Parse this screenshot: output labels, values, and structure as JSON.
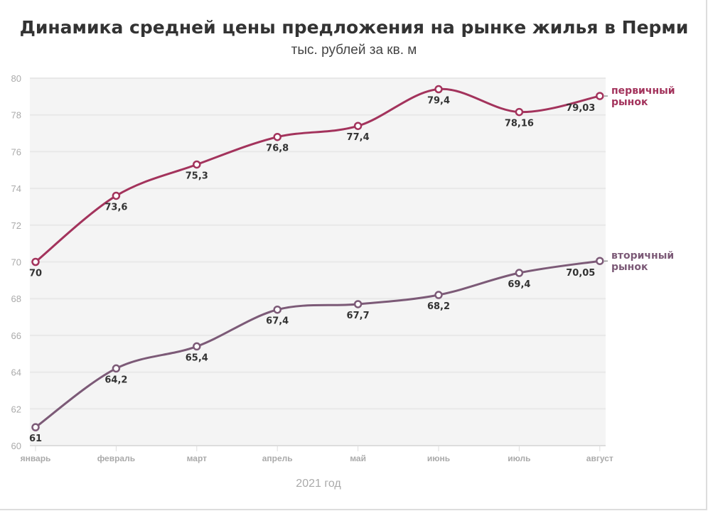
{
  "chart_data": {
    "type": "line",
    "title": "Динамика средней цены предложения на рынке жилья в Перми",
    "subtitle": "тыс. рублей за кв. м",
    "xlabel": "2021 год",
    "ylabel": "",
    "categories": [
      "январь",
      "февраль",
      "март",
      "апрель",
      "май",
      "июнь",
      "июль",
      "август"
    ],
    "ylim": [
      60,
      80
    ],
    "yticks": [
      60,
      62,
      64,
      66,
      68,
      70,
      72,
      74,
      76,
      78,
      80
    ],
    "grid": true,
    "legend": "direct labels at line ends (right)",
    "series": [
      {
        "name": "первичный рынок",
        "name_lines": [
          "первичный",
          "рынок"
        ],
        "color": "#a3335c",
        "values": [
          70,
          73.6,
          75.3,
          76.8,
          77.4,
          79.4,
          78.16,
          79.03
        ],
        "labels": [
          "70",
          "73,6",
          "75,3",
          "76,8",
          "77,4",
          "79,4",
          "78,16",
          "79,03"
        ]
      },
      {
        "name": "вторичный рынок",
        "name_lines": [
          "вторичный",
          "рынок"
        ],
        "color": "#7c5a77",
        "values": [
          61,
          64.2,
          65.4,
          67.4,
          67.7,
          68.2,
          69.4,
          70.05
        ],
        "labels": [
          "61",
          "64,2",
          "65,4",
          "67,4",
          "67,7",
          "68,2",
          "69,4",
          "70,05"
        ]
      }
    ],
    "colors": {
      "plot_bg": "#f4f4f4",
      "grid": "#e8e8e8",
      "tick_text": "#aaaaaa",
      "data_label": "#333333"
    }
  }
}
